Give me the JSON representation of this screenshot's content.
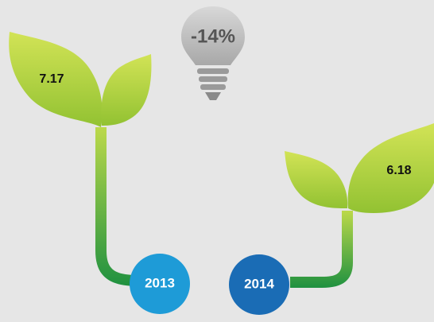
{
  "badge": "-14%",
  "items": [
    {
      "year": "2013",
      "value": "7.17"
    },
    {
      "year": "2014",
      "value": "6.18"
    }
  ]
}
